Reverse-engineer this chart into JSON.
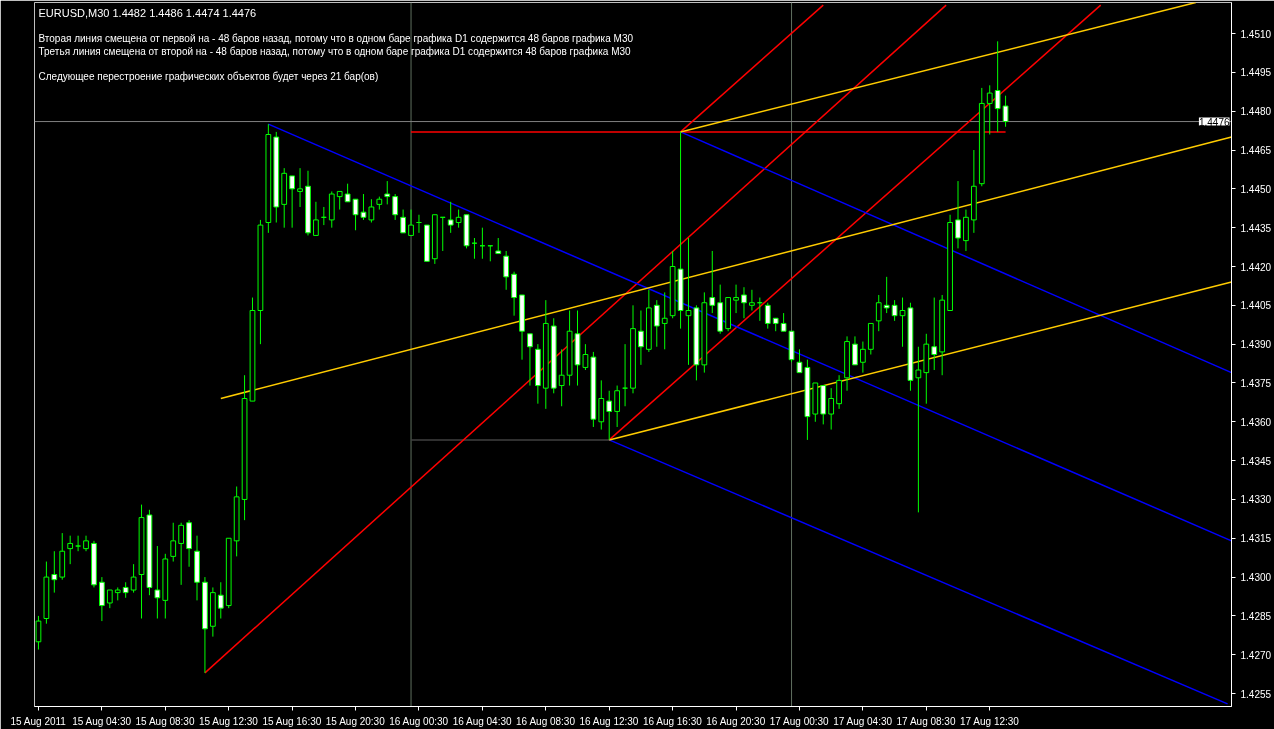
{
  "chart_data": {
    "type": "candlestick",
    "title": "EURUSD,M30  1.4482 1.4486 1.4474 1.4476",
    "annotations": [
      "Вторая линия смещена от первой на - 48 баров назад, потому что в одном баре графика D1 содержится 48 баров графика M30",
      "Третья линия смещена от второй на - 48 баров назад, потому что в одном баре графика D1 содержится 48 баров графика M30",
      "Следующее перестроение графических объектов будет через 21 бар(ов)"
    ],
    "xlim": [
      "2011-08-15T00:15",
      "2011-08-18T03:45"
    ],
    "xticks": [
      {
        "value": "2011-08-15T00:30",
        "label": "15 Aug 2011"
      },
      {
        "value": "2011-08-15T04:30",
        "label": "15 Aug 04:30"
      },
      {
        "value": "2011-08-15T08:30",
        "label": "15 Aug 08:30"
      },
      {
        "value": "2011-08-15T12:30",
        "label": "15 Aug 12:30"
      },
      {
        "value": "2011-08-15T16:30",
        "label": "15 Aug 16:30"
      },
      {
        "value": "2011-08-15T20:30",
        "label": "15 Aug 20:30"
      },
      {
        "value": "2011-08-16T00:30",
        "label": "16 Aug 00:30"
      },
      {
        "value": "2011-08-16T04:30",
        "label": "16 Aug 04:30"
      },
      {
        "value": "2011-08-16T08:30",
        "label": "16 Aug 08:30"
      },
      {
        "value": "2011-08-16T12:30",
        "label": "16 Aug 12:30"
      },
      {
        "value": "2011-08-16T16:30",
        "label": "16 Aug 16:30"
      },
      {
        "value": "2011-08-16T20:30",
        "label": "16 Aug 20:30"
      },
      {
        "value": "2011-08-17T00:30",
        "label": "17 Aug 00:30"
      },
      {
        "value": "2011-08-17T04:30",
        "label": "17 Aug 04:30"
      },
      {
        "value": "2011-08-17T08:30",
        "label": "17 Aug 08:30"
      },
      {
        "value": "2011-08-17T12:30",
        "label": "17 Aug 12:30"
      }
    ],
    "ylim": [
      1.425,
      1.4522
    ],
    "yticks": [
      1.4255,
      {
        "value": 1.427,
        "label": "1.4270"
      },
      1.4285,
      {
        "value": 1.43,
        "label": "1.4300"
      },
      1.4315,
      {
        "value": 1.433,
        "label": "1.4330"
      },
      1.4345,
      {
        "value": 1.436,
        "label": "1.4360"
      },
      1.4375,
      {
        "value": 1.439,
        "label": "1.4390"
      },
      1.4405,
      {
        "value": 1.442,
        "label": "1.4420"
      },
      1.4435,
      {
        "value": 1.445,
        "label": "1.4450"
      },
      1.4465,
      {
        "value": 1.448,
        "label": "1.4480"
      },
      1.4495,
      {
        "value": 1.451,
        "label": "1.4510"
      }
    ],
    "ref_lines": [
      {
        "axis": "x",
        "value": "2011-08-16T00:00",
        "color": "#5f6f5f"
      },
      {
        "axis": "x",
        "value": "2011-08-17T00:00",
        "color": "#5f6f5f"
      },
      {
        "axis": "y",
        "value": 1.4476,
        "label": "1.4476",
        "color": "#808080"
      }
    ],
    "series": [
      {
        "type": "line",
        "color": "#ff0000",
        "x": [
          "2011-08-16T00:00",
          "2011-08-17T13:30"
        ],
        "values": [
          1.4472,
          1.4472
        ]
      },
      {
        "type": "line",
        "color": "#404040",
        "x": [
          "2011-08-16T00:00",
          "2011-08-16T12:30"
        ],
        "values": [
          1.4353,
          1.4353
        ]
      },
      {
        "type": "line",
        "color": "#ff0000",
        "x": [
          "2011-08-15T11:00",
          "2011-08-17T09:45"
        ],
        "values": [
          1.4263,
          1.4521
        ]
      },
      {
        "type": "line",
        "color": "#ff0000",
        "x": [
          "2011-08-16T12:30",
          "2011-08-17T19:30"
        ],
        "values": [
          1.4353,
          1.4521
        ]
      },
      {
        "type": "line",
        "color": "#ff0000",
        "x": [
          "2011-08-16T17:00",
          "2011-08-17T02:00"
        ],
        "values": [
          1.4472,
          1.4521
        ]
      },
      {
        "type": "line",
        "color": "#0000ff",
        "x": [
          "2011-08-15T15:00",
          "2011-08-18T03:45"
        ],
        "values": [
          1.4475,
          1.4314
        ]
      },
      {
        "type": "line",
        "color": "#0000ff",
        "x": [
          "2011-08-16T17:00",
          "2011-08-18T03:45"
        ],
        "values": [
          1.4472,
          1.4379
        ]
      },
      {
        "type": "line",
        "color": "#0000ff",
        "x": [
          "2011-08-16T12:30",
          "2011-08-18T03:30"
        ],
        "values": [
          1.4353,
          1.4251
        ]
      },
      {
        "type": "line",
        "color": "#ffcc00",
        "x": [
          "2011-08-16T17:00",
          "2011-08-18T01:30"
        ],
        "values": [
          1.4472,
          1.4522
        ]
      },
      {
        "type": "line",
        "color": "#ffcc00",
        "x": [
          "2011-08-15T12:00",
          "2011-08-18T03:45"
        ],
        "values": [
          1.4369,
          1.447
        ]
      },
      {
        "type": "line",
        "color": "#ffcc00",
        "x": [
          "2011-08-16T12:30",
          "2011-08-18T03:45"
        ],
        "values": [
          1.4353,
          1.4414
        ]
      },
      {
        "type": "candlestick",
        "color": "#00ff00",
        "x": [
          "2011-08-15T00:30",
          "2011-08-15T01:00",
          "2011-08-15T01:30",
          "2011-08-15T02:00",
          "2011-08-15T02:30",
          "2011-08-15T03:00",
          "2011-08-15T03:30",
          "2011-08-15T04:00",
          "2011-08-15T04:30",
          "2011-08-15T05:00",
          "2011-08-15T05:30",
          "2011-08-15T06:00",
          "2011-08-15T06:30",
          "2011-08-15T07:00",
          "2011-08-15T07:30",
          "2011-08-15T08:00",
          "2011-08-15T08:30",
          "2011-08-15T09:00",
          "2011-08-15T09:30",
          "2011-08-15T10:00",
          "2011-08-15T10:30",
          "2011-08-15T11:00",
          "2011-08-15T11:30",
          "2011-08-15T12:00",
          "2011-08-15T12:30",
          "2011-08-15T13:00",
          "2011-08-15T13:30",
          "2011-08-15T14:00",
          "2011-08-15T14:30",
          "2011-08-15T15:00",
          "2011-08-15T15:30",
          "2011-08-15T16:00",
          "2011-08-15T16:30",
          "2011-08-15T17:00",
          "2011-08-15T17:30",
          "2011-08-15T18:00",
          "2011-08-15T18:30",
          "2011-08-15T19:00",
          "2011-08-15T19:30",
          "2011-08-15T20:00",
          "2011-08-15T20:30",
          "2011-08-15T21:00",
          "2011-08-15T21:30",
          "2011-08-15T22:00",
          "2011-08-15T22:30",
          "2011-08-15T23:00",
          "2011-08-15T23:30",
          "2011-08-16T00:00",
          "2011-08-16T00:30",
          "2011-08-16T01:00",
          "2011-08-16T01:30",
          "2011-08-16T02:00",
          "2011-08-16T02:30",
          "2011-08-16T03:00",
          "2011-08-16T03:30",
          "2011-08-16T04:00",
          "2011-08-16T04:30",
          "2011-08-16T05:00",
          "2011-08-16T05:30",
          "2011-08-16T06:00",
          "2011-08-16T06:30",
          "2011-08-16T07:00",
          "2011-08-16T07:30",
          "2011-08-16T08:00",
          "2011-08-16T08:30",
          "2011-08-16T09:00",
          "2011-08-16T09:30",
          "2011-08-16T10:00",
          "2011-08-16T10:30",
          "2011-08-16T11:00",
          "2011-08-16T11:30",
          "2011-08-16T12:00",
          "2011-08-16T12:30",
          "2011-08-16T13:00",
          "2011-08-16T13:30",
          "2011-08-16T14:00",
          "2011-08-16T14:30",
          "2011-08-16T15:00",
          "2011-08-16T15:30",
          "2011-08-16T16:00",
          "2011-08-16T16:30",
          "2011-08-16T17:00",
          "2011-08-16T17:30",
          "2011-08-16T18:00",
          "2011-08-16T18:30",
          "2011-08-16T19:00",
          "2011-08-16T19:30",
          "2011-08-16T20:00",
          "2011-08-16T20:30",
          "2011-08-16T21:00",
          "2011-08-16T21:30",
          "2011-08-16T22:00",
          "2011-08-16T22:30",
          "2011-08-16T23:00",
          "2011-08-16T23:30",
          "2011-08-17T00:00",
          "2011-08-17T00:30",
          "2011-08-17T01:00",
          "2011-08-17T01:30",
          "2011-08-17T02:00",
          "2011-08-17T02:30",
          "2011-08-17T03:00",
          "2011-08-17T03:30",
          "2011-08-17T04:00",
          "2011-08-17T04:30",
          "2011-08-17T05:00",
          "2011-08-17T05:30",
          "2011-08-17T06:00",
          "2011-08-17T06:30",
          "2011-08-17T07:00",
          "2011-08-17T07:30",
          "2011-08-17T08:00",
          "2011-08-17T08:30",
          "2011-08-17T09:00",
          "2011-08-17T09:30",
          "2011-08-17T10:00",
          "2011-08-17T10:30",
          "2011-08-17T11:00",
          "2011-08-17T11:30",
          "2011-08-17T12:00",
          "2011-08-17T12:30",
          "2011-08-17T13:00",
          "2011-08-17T13:30"
        ],
        "ohlc": [
          [
            1.4275,
            1.4285,
            1.4272,
            1.4283
          ],
          [
            1.4284,
            1.4306,
            1.4282,
            1.43
          ],
          [
            1.4301,
            1.431,
            1.4294,
            1.4299
          ],
          [
            1.43,
            1.4317,
            1.4299,
            1.431
          ],
          [
            1.4311,
            1.4316,
            1.4305,
            1.4313
          ],
          [
            1.4312,
            1.4316,
            1.431,
            1.4312
          ],
          [
            1.4311,
            1.4316,
            1.431,
            1.4314
          ],
          [
            1.4313,
            1.4314,
            1.4296,
            1.4297
          ],
          [
            1.4298,
            1.43,
            1.4283,
            1.4289
          ],
          [
            1.429,
            1.4295,
            1.4288,
            1.4295
          ],
          [
            1.4294,
            1.4296,
            1.4291,
            1.4295
          ],
          [
            1.4296,
            1.4298,
            1.4292,
            1.4294
          ],
          [
            1.4295,
            1.4305,
            1.4294,
            1.43
          ],
          [
            1.4301,
            1.4328,
            1.4284,
            1.4323
          ],
          [
            1.4324,
            1.4326,
            1.4293,
            1.4296
          ],
          [
            1.4295,
            1.4312,
            1.4284,
            1.4292
          ],
          [
            1.4291,
            1.4309,
            1.4284,
            1.4307
          ],
          [
            1.4308,
            1.4321,
            1.4306,
            1.4314
          ],
          [
            1.4313,
            1.4321,
            1.4297,
            1.432
          ],
          [
            1.4321,
            1.4322,
            1.4304,
            1.4311
          ],
          [
            1.431,
            1.4316,
            1.4291,
            1.4298
          ],
          [
            1.4298,
            1.43,
            1.4263,
            1.428
          ],
          [
            1.4281,
            1.4296,
            1.4277,
            1.4294
          ],
          [
            1.4293,
            1.4298,
            1.4284,
            1.4288
          ],
          [
            1.4289,
            1.4315,
            1.4288,
            1.4315
          ],
          [
            1.4314,
            1.4335,
            1.4308,
            1.4331
          ],
          [
            1.433,
            1.4378,
            1.4322,
            1.4369
          ],
          [
            1.4368,
            1.4408,
            1.4368,
            1.4403
          ],
          [
            1.4403,
            1.4438,
            1.439,
            1.4436
          ],
          [
            1.4437,
            1.4475,
            1.4433,
            1.4471
          ],
          [
            1.447,
            1.4472,
            1.4437,
            1.4443
          ],
          [
            1.4444,
            1.4458,
            1.4435,
            1.4456
          ],
          [
            1.4455,
            1.4455,
            1.4435,
            1.445
          ],
          [
            1.4449,
            1.4458,
            1.4443,
            1.445
          ],
          [
            1.4451,
            1.4457,
            1.4432,
            1.4433
          ],
          [
            1.4432,
            1.4445,
            1.4432,
            1.4438
          ],
          [
            1.4439,
            1.4443,
            1.4436,
            1.4439
          ],
          [
            1.4438,
            1.4449,
            1.4435,
            1.4448
          ],
          [
            1.4447,
            1.4449,
            1.4442,
            1.4449
          ],
          [
            1.4448,
            1.4452,
            1.4445,
            1.4445
          ],
          [
            1.4446,
            1.4446,
            1.4434,
            1.444
          ],
          [
            1.4441,
            1.4448,
            1.4438,
            1.4439
          ],
          [
            1.4438,
            1.4446,
            1.4437,
            1.4443
          ],
          [
            1.4444,
            1.4447,
            1.4442,
            1.4446
          ],
          [
            1.4448,
            1.4453,
            1.4444,
            1.4447
          ],
          [
            1.4447,
            1.4448,
            1.4438,
            1.444
          ],
          [
            1.4439,
            1.4442,
            1.4433,
            1.4433
          ],
          [
            1.4432,
            1.4442,
            1.4432,
            1.4436
          ],
          [
            1.4437,
            1.444,
            1.4433,
            1.4437
          ],
          [
            1.4436,
            1.4436,
            1.4422,
            1.4422
          ],
          [
            1.4423,
            1.444,
            1.4421,
            1.444
          ],
          [
            1.4439,
            1.4439,
            1.4426,
            1.4439
          ],
          [
            1.4438,
            1.4445,
            1.4433,
            1.4436
          ],
          [
            1.4437,
            1.4442,
            1.4435,
            1.4439
          ],
          [
            1.444,
            1.444,
            1.4427,
            1.4428
          ],
          [
            1.4429,
            1.4431,
            1.4423,
            1.4429
          ],
          [
            1.4428,
            1.4435,
            1.4423,
            1.4428
          ],
          [
            1.4428,
            1.4428,
            1.4422,
            1.4428
          ],
          [
            1.4426,
            1.4431,
            1.4425,
            1.4425
          ],
          [
            1.4424,
            1.4426,
            1.4411,
            1.4416
          ],
          [
            1.4417,
            1.4418,
            1.4401,
            1.4408
          ],
          [
            1.4409,
            1.4409,
            1.4384,
            1.4395
          ],
          [
            1.4394,
            1.4394,
            1.4374,
            1.4389
          ],
          [
            1.4388,
            1.439,
            1.4367,
            1.4374
          ],
          [
            1.4373,
            1.4407,
            1.4365,
            1.4398
          ],
          [
            1.4397,
            1.44,
            1.4371,
            1.4373
          ],
          [
            1.4374,
            1.4388,
            1.4366,
            1.4378
          ],
          [
            1.4378,
            1.4403,
            1.4374,
            1.4395
          ],
          [
            1.4394,
            1.4403,
            1.4374,
            1.4382
          ],
          [
            1.4381,
            1.439,
            1.438,
            1.4386
          ],
          [
            1.4385,
            1.4387,
            1.4358,
            1.4361
          ],
          [
            1.436,
            1.4376,
            1.4357,
            1.4369
          ],
          [
            1.4368,
            1.4372,
            1.4353,
            1.4364
          ],
          [
            1.4364,
            1.4374,
            1.4358,
            1.4372
          ],
          [
            1.4373,
            1.439,
            1.4366,
            1.4373
          ],
          [
            1.4373,
            1.4405,
            1.4371,
            1.4396
          ],
          [
            1.4395,
            1.4403,
            1.4382,
            1.4389
          ],
          [
            1.4388,
            1.4411,
            1.4387,
            1.4404
          ],
          [
            1.4405,
            1.4407,
            1.4389,
            1.4397
          ],
          [
            1.4398,
            1.441,
            1.4388,
            1.44
          ],
          [
            1.4401,
            1.4426,
            1.44,
            1.442
          ],
          [
            1.4419,
            1.4472,
            1.4396,
            1.4403
          ],
          [
            1.4401,
            1.4431,
            1.4382,
            1.4403
          ],
          [
            1.4404,
            1.4405,
            1.4376,
            1.4382
          ],
          [
            1.4382,
            1.441,
            1.4379,
            1.4406
          ],
          [
            1.4408,
            1.4426,
            1.4402,
            1.4405
          ],
          [
            1.4406,
            1.4413,
            1.4394,
            1.4395
          ],
          [
            1.4396,
            1.4408,
            1.4395,
            1.4408
          ],
          [
            1.4407,
            1.4413,
            1.4402,
            1.4408
          ],
          [
            1.4409,
            1.4412,
            1.44,
            1.4406
          ],
          [
            1.4405,
            1.4411,
            1.4403,
            1.4406
          ],
          [
            1.4406,
            1.4408,
            1.4399,
            1.4406
          ],
          [
            1.4405,
            1.4406,
            1.4396,
            1.4398
          ],
          [
            1.44,
            1.44,
            1.4395,
            1.4398
          ],
          [
            1.4398,
            1.4402,
            1.4395,
            1.4395
          ],
          [
            1.4395,
            1.4395,
            1.4383,
            1.4384
          ],
          [
            1.4383,
            1.4388,
            1.4379,
            1.4379
          ],
          [
            1.4381,
            1.4384,
            1.4353,
            1.4362
          ],
          [
            1.4363,
            1.4375,
            1.436,
            1.4375
          ],
          [
            1.4374,
            1.4374,
            1.4359,
            1.4363
          ],
          [
            1.4363,
            1.4373,
            1.4357,
            1.4369
          ],
          [
            1.4367,
            1.4378,
            1.4365,
            1.4376
          ],
          [
            1.4377,
            1.4393,
            1.4372,
            1.4391
          ],
          [
            1.439,
            1.4393,
            1.4382,
            1.4382
          ],
          [
            1.4383,
            1.4391,
            1.4379,
            1.4388
          ],
          [
            1.4388,
            1.4398,
            1.4386,
            1.4398
          ],
          [
            1.4399,
            1.4409,
            1.4395,
            1.4406
          ],
          [
            1.4405,
            1.4416,
            1.4402,
            1.4404
          ],
          [
            1.4405,
            1.4407,
            1.4399,
            1.4401
          ],
          [
            1.4401,
            1.4408,
            1.4389,
            1.4403
          ],
          [
            1.4404,
            1.4406,
            1.4372,
            1.4376
          ],
          [
            1.4377,
            1.4389,
            1.4325,
            1.438
          ],
          [
            1.4379,
            1.4394,
            1.4367,
            1.439
          ],
          [
            1.4389,
            1.4408,
            1.438,
            1.4386
          ],
          [
            1.4387,
            1.4409,
            1.4378,
            1.4407
          ],
          [
            1.4403,
            1.444,
            1.4403,
            1.4437
          ],
          [
            1.4438,
            1.4453,
            1.4427,
            1.4431
          ],
          [
            1.443,
            1.4442,
            1.4426,
            1.4439
          ],
          [
            1.4438,
            1.4465,
            1.4433,
            1.4451
          ],
          [
            1.4452,
            1.4489,
            1.4451,
            1.4483
          ],
          [
            1.4483,
            1.449,
            1.4471,
            1.4487
          ],
          [
            1.4488,
            1.4507,
            1.4472,
            1.4481
          ],
          [
            1.4482,
            1.4486,
            1.4474,
            1.4476
          ]
        ]
      }
    ]
  }
}
